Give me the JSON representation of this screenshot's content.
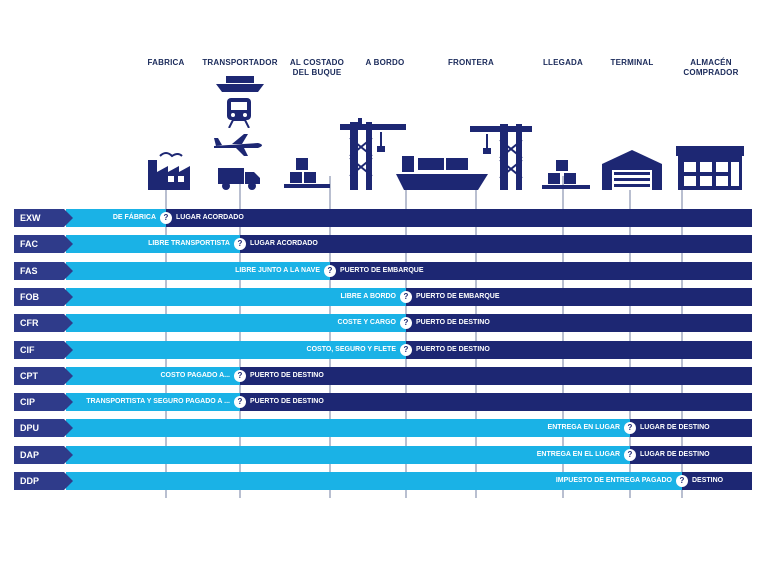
{
  "columns": [
    "FABRICA",
    "TRANSPORTADOR",
    "AL COSTADO\nDEL BUQUE",
    "A BORDO",
    "FRONTERA",
    "LLEGADA",
    "TERMINAL",
    "ALMACÉN\nCOMPRADOR"
  ],
  "icons": [
    "factory-icon",
    "ship-icon",
    "train-icon",
    "plane-icon",
    "truck-icon",
    "pallet-boxes-icon",
    "crane-icon",
    "cargo-ship-icon",
    "crane-icon",
    "pallet-boxes-icon",
    "terminal-icon",
    "warehouse-icon"
  ],
  "colors": {
    "light": "#1ab2e6",
    "dark": "#1d2773",
    "code": "#2f3b8a",
    "text": "#1a2a5a"
  },
  "marker": "?",
  "rows": [
    {
      "code": "EXW",
      "light_label": "DE FÁBRICA",
      "dark_label": "LUGAR ACORDADO",
      "split": 0
    },
    {
      "code": "FAC",
      "light_label": "LIBRE TRANSPORTISTA",
      "dark_label": "LUGAR ACORDADO",
      "split": 1
    },
    {
      "code": "FAS",
      "light_label": "LIBRE JUNTO A LA NAVE",
      "dark_label": "PUERTO DE EMBARQUE",
      "split": 2
    },
    {
      "code": "FOB",
      "light_label": "LIBRE A BORDO",
      "dark_label": "PUERTO DE EMBARQUE",
      "split": 3
    },
    {
      "code": "CFR",
      "light_label": "COSTE Y CARGO",
      "dark_label": "PUERTO DE DESTINO",
      "split": 3
    },
    {
      "code": "CIF",
      "light_label": "COSTO, SEGURO Y FLETE",
      "dark_label": "PUERTO DE DESTINO",
      "split": 3
    },
    {
      "code": "CPT",
      "light_label": "COSTO PAGADO A...",
      "dark_label": "PUERTO DE DESTINO",
      "split": 1
    },
    {
      "code": "CIP",
      "light_label": "TRANSPORTISTA Y SEGURO PAGADO A ...",
      "dark_label": "PUERTO DE DESTINO",
      "split": 1
    },
    {
      "code": "DPU",
      "light_label": "ENTREGA EN LUGAR",
      "dark_label": "LUGAR DE DESTINO",
      "split": 6
    },
    {
      "code": "DAP",
      "light_label": "ENTREGA EN EL LUGAR",
      "dark_label": "LUGAR DE DESTINO",
      "split": 6
    },
    {
      "code": "DDP",
      "light_label": "IMPUESTO DE ENTREGA PAGADO",
      "dark_label": "DESTINO",
      "split": 7
    }
  ]
}
